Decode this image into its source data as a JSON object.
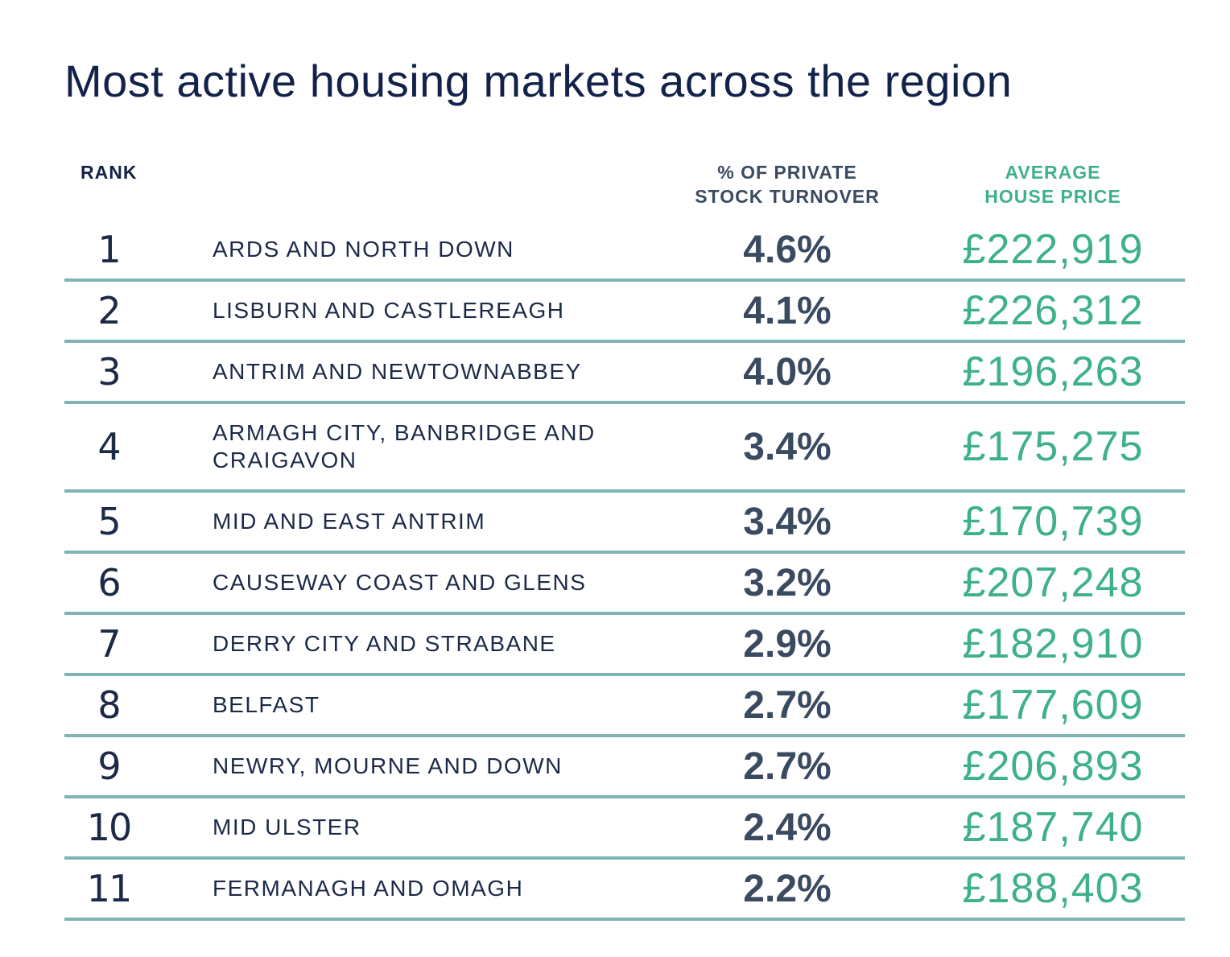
{
  "title": "Most active housing markets across the region",
  "colors": {
    "title": "#13224a",
    "turnover": "#3a4a60",
    "price": "#3fb08c",
    "divider": "#7fb4b4"
  },
  "headers": {
    "rank": "RANK",
    "turnover_line1": "% OF PRIVATE",
    "turnover_line2": "STOCK TURNOVER",
    "price_line1": "AVERAGE",
    "price_line2": "HOUSE PRICE"
  },
  "chart_data": {
    "type": "table",
    "title": "Most active housing markets across the region",
    "columns": [
      "RANK",
      "",
      "% OF PRIVATE STOCK TURNOVER",
      "AVERAGE HOUSE PRICE"
    ],
    "rows": [
      {
        "rank": "1",
        "name": "ARDS AND NORTH DOWN",
        "turnover": "4.6%",
        "price": "£222,919"
      },
      {
        "rank": "2",
        "name": "LISBURN AND CASTLEREAGH",
        "turnover": "4.1%",
        "price": "£226,312"
      },
      {
        "rank": "3",
        "name": "ANTRIM AND NEWTOWNABBEY",
        "turnover": "4.0%",
        "price": "£196,263"
      },
      {
        "rank": "4",
        "name": "ARMAGH CITY, BANBRIDGE AND CRAIGAVON",
        "name_line1": "ARMAGH CITY, BANBRIDGE AND",
        "name_line2": "CRAIGAVON",
        "turnover": "3.4%",
        "price": "£175,275"
      },
      {
        "rank": "5",
        "name": "MID AND EAST ANTRIM",
        "turnover": "3.4%",
        "price": "£170,739"
      },
      {
        "rank": "6",
        "name": "CAUSEWAY COAST AND GLENS",
        "turnover": "3.2%",
        "price": "£207,248"
      },
      {
        "rank": "7",
        "name": "DERRY CITY AND STRABANE",
        "turnover": "2.9%",
        "price": "£182,910"
      },
      {
        "rank": "8",
        "name": "BELFAST",
        "turnover": "2.7%",
        "price": "£177,609"
      },
      {
        "rank": "9",
        "name": "NEWRY, MOURNE AND DOWN",
        "turnover": "2.7%",
        "price": "£206,893"
      },
      {
        "rank": "10",
        "name": "MID ULSTER",
        "turnover": "2.4%",
        "price": "£187,740"
      },
      {
        "rank": "11",
        "name": "FERMANAGH AND OMAGH",
        "turnover": "2.2%",
        "price": "£188,403"
      }
    ]
  }
}
